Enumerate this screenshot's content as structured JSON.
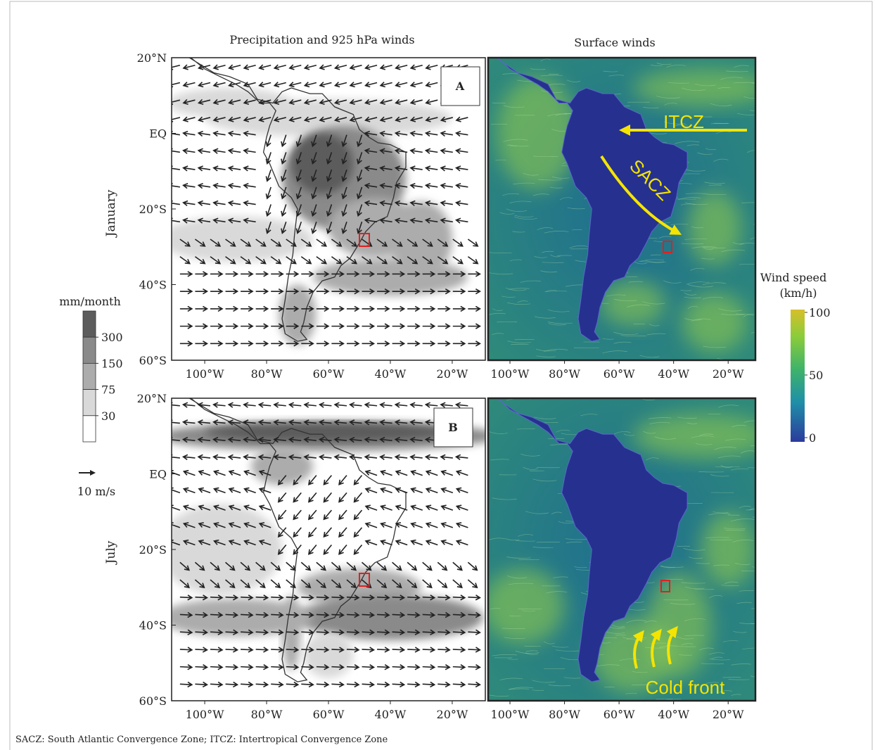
{
  "column_titles": [
    "Precipitation and 925 hPa winds",
    "Surface winds"
  ],
  "rows": [
    {
      "label": "January",
      "panel": "A"
    },
    {
      "label": "July",
      "panel": "B"
    }
  ],
  "map_extent": {
    "precipitation": {
      "lonlim": [
        -110.7,
        -9.3
      ],
      "latlim": [
        20,
        -60
      ]
    },
    "surface": {
      "lonlim": [
        -108,
        -10
      ],
      "latlim": [
        20,
        -60
      ]
    }
  },
  "latitude_ticks": [
    {
      "value": 20,
      "label": "20°N"
    },
    {
      "value": 0,
      "label": "EQ"
    },
    {
      "value": -20,
      "label": "20°S"
    },
    {
      "value": -40,
      "label": "40°S"
    },
    {
      "value": -60,
      "label": "60°S"
    }
  ],
  "longitude_ticks": [
    {
      "value": -100,
      "label": "100°W"
    },
    {
      "value": -80,
      "label": "80°W"
    },
    {
      "value": -60,
      "label": "60°W"
    },
    {
      "value": -40,
      "label": "40°W"
    },
    {
      "value": -20,
      "label": "20°W"
    }
  ],
  "precipitation_legend": {
    "title": "mm/month",
    "levels": [
      30,
      75,
      150,
      300
    ]
  },
  "reference_vector": "10 m/s",
  "wind_speed_legend": {
    "title": [
      "Wind speed",
      "(km/h)"
    ],
    "range": [
      0,
      100
    ],
    "ticks": [
      0,
      50,
      100
    ]
  },
  "annotations": {
    "itcz": "ITCZ",
    "sacz": "SACZ",
    "cold_front": "Cold front"
  },
  "footnote": "SACZ: South Atlantic Convergence Zone; ITCZ: Intertropical Convergence Zone"
}
